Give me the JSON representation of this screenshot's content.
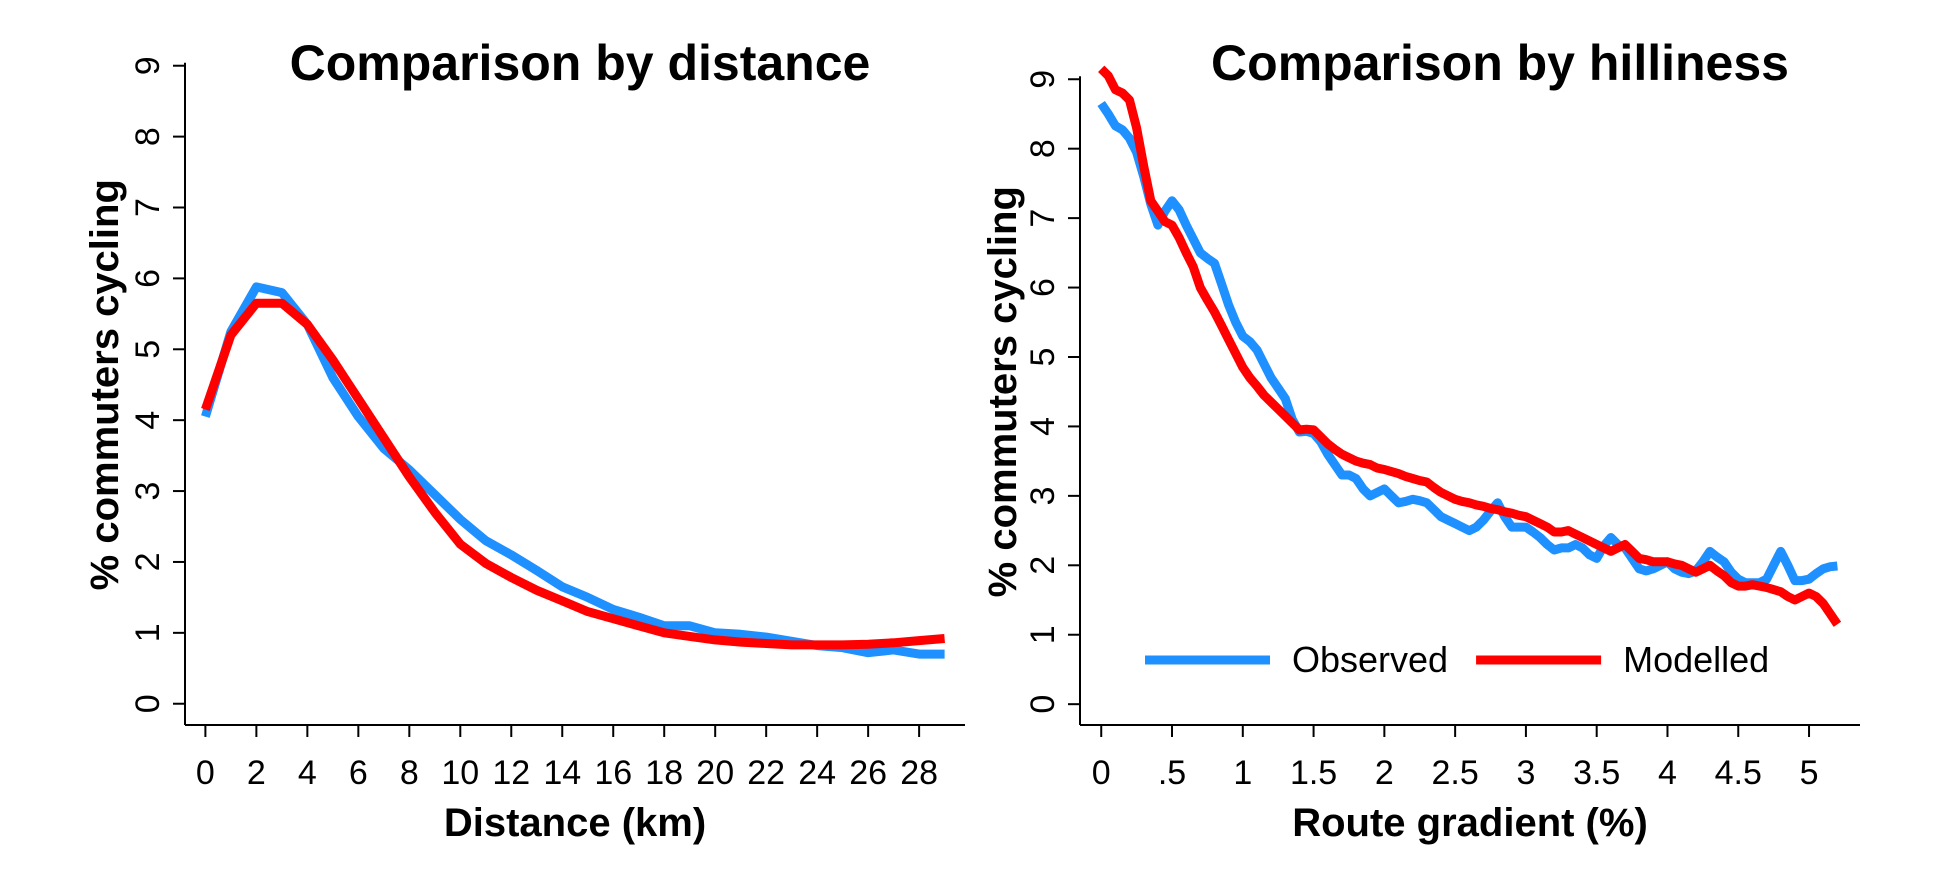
{
  "chart_data": [
    {
      "type": "line",
      "title": "Comparison by distance",
      "xlabel": "Distance (km)",
      "ylabel": "% commuters cycling",
      "xlim": [
        -0.8,
        29.8
      ],
      "ylim": [
        -0.3,
        9.25
      ],
      "x_ticks": [
        0,
        2,
        4,
        6,
        8,
        10,
        12,
        14,
        16,
        18,
        20,
        22,
        24,
        26,
        28
      ],
      "x_tick_labels": [
        "0",
        "2",
        "4",
        "6",
        "8",
        "10",
        "12",
        "14",
        "16",
        "18",
        "20",
        "22",
        "24",
        "26",
        "28"
      ],
      "y_ticks": [
        0,
        1,
        2,
        3,
        4,
        5,
        6,
        7,
        8,
        9
      ],
      "y_tick_labels": [
        "0",
        "1",
        "2",
        "3",
        "4",
        "5",
        "6",
        "7",
        "8",
        "9"
      ],
      "legend": null,
      "series": [
        {
          "color": "#1e90ff",
          "x": [
            0,
            1,
            2,
            3,
            4,
            5,
            6,
            7,
            8,
            9,
            10,
            11,
            12,
            13,
            14,
            15,
            16,
            17,
            18,
            19,
            20,
            21,
            22,
            23,
            24,
            25,
            26,
            27,
            28,
            29
          ],
          "y": [
            4.05,
            5.25,
            5.88,
            5.8,
            5.35,
            4.6,
            4.05,
            3.6,
            3.3,
            2.95,
            2.6,
            2.3,
            2.1,
            1.88,
            1.65,
            1.5,
            1.33,
            1.22,
            1.1,
            1.1,
            1.0,
            0.98,
            0.94,
            0.88,
            0.82,
            0.79,
            0.72,
            0.76,
            0.7,
            0.7
          ]
        },
        {
          "color": "#ff0000",
          "x": [
            0,
            1,
            2,
            3,
            4,
            5,
            6,
            7,
            8,
            9,
            10,
            11,
            12,
            13,
            14,
            15,
            16,
            17,
            18,
            19,
            20,
            21,
            22,
            23,
            24,
            25,
            26,
            27,
            28,
            29
          ],
          "y": [
            4.15,
            5.2,
            5.65,
            5.65,
            5.35,
            4.85,
            4.3,
            3.75,
            3.2,
            2.7,
            2.25,
            1.98,
            1.78,
            1.6,
            1.45,
            1.3,
            1.2,
            1.1,
            1.0,
            0.95,
            0.9,
            0.87,
            0.85,
            0.83,
            0.83,
            0.83,
            0.84,
            0.86,
            0.89,
            0.92
          ]
        }
      ]
    },
    {
      "type": "line",
      "title": "Comparison by hilliness",
      "xlabel": "Route gradient (%)",
      "ylabel": "% commuters cycling",
      "xlim": [
        -0.15,
        5.36
      ],
      "ylim": [
        -0.3,
        9.45
      ],
      "x_ticks": [
        0,
        0.5,
        1,
        1.5,
        2,
        2.5,
        3,
        3.5,
        4,
        4.5,
        5
      ],
      "x_tick_labels": [
        "0",
        ".5",
        "1",
        "1.5",
        "2",
        "2.5",
        "3",
        "3.5",
        "4",
        "4.5",
        "5"
      ],
      "y_ticks": [
        0,
        1,
        2,
        3,
        4,
        5,
        6,
        7,
        8,
        9
      ],
      "y_tick_labels": [
        "0",
        "1",
        "2",
        "3",
        "4",
        "5",
        "6",
        "7",
        "8",
        "9"
      ],
      "legend": {
        "placement": "bottom-inside",
        "entries": [
          {
            "label": "Observed",
            "color": "#1e90ff"
          },
          {
            "label": "Modelled",
            "color": "#ff0000"
          }
        ]
      },
      "series": [
        {
          "name": "Observed",
          "color": "#1e90ff",
          "x": [
            0,
            0.05,
            0.1,
            0.15,
            0.2,
            0.25,
            0.3,
            0.35,
            0.4,
            0.45,
            0.5,
            0.55,
            0.6,
            0.65,
            0.7,
            0.75,
            0.8,
            0.85,
            0.9,
            0.95,
            1.0,
            1.05,
            1.1,
            1.15,
            1.2,
            1.25,
            1.3,
            1.35,
            1.4,
            1.45,
            1.5,
            1.55,
            1.6,
            1.65,
            1.7,
            1.75,
            1.8,
            1.85,
            1.9,
            1.95,
            2.0,
            2.05,
            2.1,
            2.15,
            2.2,
            2.25,
            2.3,
            2.35,
            2.4,
            2.45,
            2.5,
            2.55,
            2.6,
            2.65,
            2.7,
            2.75,
            2.8,
            2.85,
            2.9,
            2.95,
            3.0,
            3.05,
            3.1,
            3.15,
            3.2,
            3.25,
            3.3,
            3.35,
            3.4,
            3.45,
            3.5,
            3.55,
            3.6,
            3.65,
            3.7,
            3.75,
            3.8,
            3.85,
            3.9,
            3.95,
            4.0,
            4.05,
            4.1,
            4.15,
            4.2,
            4.25,
            4.3,
            4.35,
            4.4,
            4.45,
            4.5,
            4.55,
            4.6,
            4.65,
            4.7,
            4.75,
            4.8,
            4.85,
            4.9,
            4.95,
            5.0,
            5.05,
            5.1,
            5.15,
            5.2
          ],
          "y": [
            8.65,
            8.5,
            8.33,
            8.27,
            8.15,
            7.95,
            7.6,
            7.2,
            6.9,
            7.1,
            7.25,
            7.12,
            6.9,
            6.7,
            6.5,
            6.42,
            6.35,
            6.05,
            5.75,
            5.5,
            5.3,
            5.22,
            5.1,
            4.9,
            4.7,
            4.55,
            4.4,
            4.1,
            3.92,
            3.93,
            3.9,
            3.78,
            3.6,
            3.45,
            3.3,
            3.3,
            3.25,
            3.1,
            3.0,
            3.05,
            3.1,
            3.0,
            2.9,
            2.92,
            2.95,
            2.93,
            2.9,
            2.8,
            2.7,
            2.65,
            2.6,
            2.55,
            2.5,
            2.55,
            2.65,
            2.78,
            2.9,
            2.7,
            2.55,
            2.55,
            2.55,
            2.48,
            2.4,
            2.3,
            2.22,
            2.25,
            2.25,
            2.3,
            2.25,
            2.15,
            2.1,
            2.28,
            2.4,
            2.3,
            2.25,
            2.1,
            1.95,
            1.92,
            1.95,
            2.0,
            2.05,
            1.95,
            1.9,
            1.88,
            1.92,
            2.05,
            2.2,
            2.12,
            2.05,
            1.9,
            1.8,
            1.75,
            1.75,
            1.75,
            1.8,
            2.0,
            2.2,
            2.0,
            1.78,
            1.78,
            1.8,
            1.88,
            1.95,
            1.98,
            1.99
          ]
        },
        {
          "name": "Modelled",
          "color": "#ff0000",
          "x": [
            0,
            0.05,
            0.1,
            0.15,
            0.2,
            0.25,
            0.3,
            0.35,
            0.4,
            0.45,
            0.5,
            0.55,
            0.6,
            0.65,
            0.7,
            0.75,
            0.8,
            0.85,
            0.9,
            0.95,
            1.0,
            1.05,
            1.1,
            1.15,
            1.2,
            1.25,
            1.3,
            1.35,
            1.4,
            1.45,
            1.5,
            1.55,
            1.6,
            1.65,
            1.7,
            1.75,
            1.8,
            1.85,
            1.9,
            1.95,
            2.0,
            2.05,
            2.1,
            2.15,
            2.2,
            2.25,
            2.3,
            2.35,
            2.4,
            2.45,
            2.5,
            2.55,
            2.6,
            2.65,
            2.7,
            2.75,
            2.8,
            2.85,
            2.9,
            2.95,
            3.0,
            3.05,
            3.1,
            3.15,
            3.2,
            3.25,
            3.3,
            3.35,
            3.4,
            3.45,
            3.5,
            3.55,
            3.6,
            3.65,
            3.7,
            3.75,
            3.8,
            3.85,
            3.9,
            3.95,
            4.0,
            4.05,
            4.1,
            4.15,
            4.2,
            4.25,
            4.3,
            4.35,
            4.4,
            4.45,
            4.5,
            4.55,
            4.6,
            4.65,
            4.7,
            4.75,
            4.8,
            4.85,
            4.9,
            4.95,
            5.0,
            5.05,
            5.1,
            5.15,
            5.2
          ],
          "y": [
            9.15,
            9.05,
            8.85,
            8.8,
            8.7,
            8.3,
            7.75,
            7.25,
            7.1,
            6.95,
            6.9,
            6.72,
            6.5,
            6.3,
            6.0,
            5.82,
            5.65,
            5.45,
            5.25,
            5.05,
            4.85,
            4.7,
            4.58,
            4.45,
            4.35,
            4.25,
            4.15,
            4.05,
            3.95,
            3.96,
            3.95,
            3.85,
            3.75,
            3.67,
            3.6,
            3.55,
            3.5,
            3.47,
            3.45,
            3.4,
            3.38,
            3.35,
            3.32,
            3.28,
            3.25,
            3.22,
            3.2,
            3.12,
            3.05,
            3.0,
            2.95,
            2.92,
            2.9,
            2.87,
            2.85,
            2.82,
            2.8,
            2.77,
            2.75,
            2.72,
            2.7,
            2.65,
            2.6,
            2.55,
            2.48,
            2.48,
            2.5,
            2.45,
            2.4,
            2.35,
            2.3,
            2.25,
            2.2,
            2.25,
            2.3,
            2.2,
            2.1,
            2.08,
            2.05,
            2.05,
            2.05,
            2.02,
            2.0,
            1.95,
            1.9,
            1.95,
            2.0,
            1.92,
            1.85,
            1.75,
            1.7,
            1.7,
            1.72,
            1.7,
            1.68,
            1.65,
            1.62,
            1.55,
            1.5,
            1.55,
            1.6,
            1.55,
            1.45,
            1.3,
            1.15
          ]
        }
      ]
    }
  ]
}
